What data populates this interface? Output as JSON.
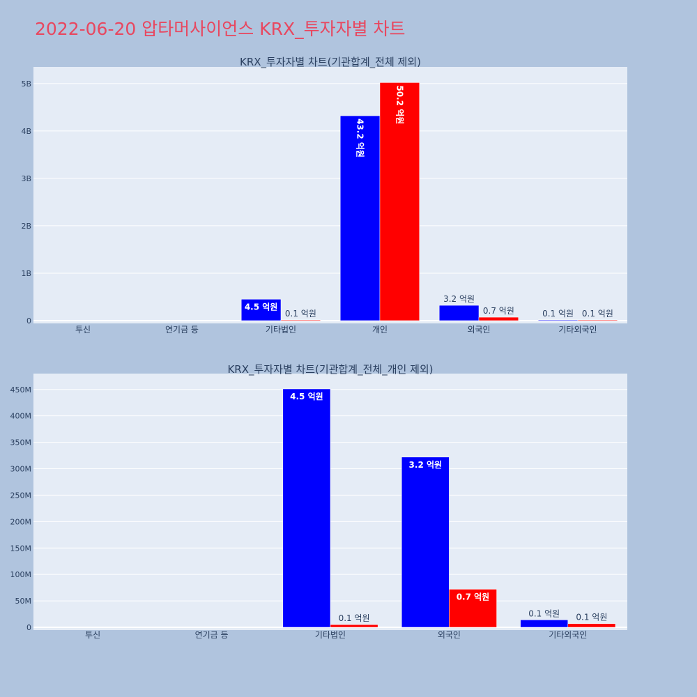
{
  "page": {
    "title": "2022-06-20 압타머사이언스 KRX_투자자별 차트"
  },
  "colors": {
    "series_a": "#0000ff",
    "series_b": "#ff0000",
    "plot_bg": "#e5ecf6",
    "page_bg": "#b0c4de"
  },
  "chart_data": [
    {
      "type": "bar",
      "title": "KRX_투자자별 차트(기관합계_전체 제외)",
      "categories": [
        "투신",
        "연기금 등",
        "기타법인",
        "개인",
        "외국인",
        "기타외국인"
      ],
      "series": [
        {
          "color": "#0000ff",
          "values": [
            0,
            0,
            451000000,
            4320000000,
            322000000,
            14000000
          ],
          "labels": [
            "",
            "",
            "4.5 억원",
            "43.2 억원",
            "3.2 억원",
            "0.1 억원"
          ]
        },
        {
          "color": "#ff0000",
          "values": [
            0,
            0,
            5000000,
            5020000000,
            72000000,
            7000000
          ],
          "labels": [
            "",
            "",
            "0.1 억원",
            "50.2 억원",
            "0.7 억원",
            "0.1 억원"
          ]
        }
      ],
      "ylim": [
        0,
        5350000000
      ],
      "yticks": [
        0,
        1000000000,
        2000000000,
        3000000000,
        4000000000,
        5000000000
      ],
      "ytick_labels": [
        "0",
        "1B",
        "2B",
        "3B",
        "4B",
        "5B"
      ],
      "grid": true
    },
    {
      "type": "bar",
      "title": "KRX_투자자별 차트(기관합계_전체_개인 제외)",
      "categories": [
        "투신",
        "연기금 등",
        "기타법인",
        "외국인",
        "기타외국인"
      ],
      "series": [
        {
          "color": "#0000ff",
          "values": [
            0,
            0,
            451000000,
            322000000,
            14000000
          ],
          "labels": [
            "",
            "",
            "4.5 억원",
            "3.2 억원",
            "0.1 억원"
          ]
        },
        {
          "color": "#ff0000",
          "values": [
            0,
            0,
            5000000,
            72000000,
            7000000
          ],
          "labels": [
            "",
            "",
            "0.1 억원",
            "0.7 억원",
            "0.1 억원"
          ]
        }
      ],
      "ylim": [
        0,
        480000000
      ],
      "yticks": [
        0,
        50000000,
        100000000,
        150000000,
        200000000,
        250000000,
        300000000,
        350000000,
        400000000,
        450000000
      ],
      "ytick_labels": [
        "0",
        "50M",
        "100M",
        "150M",
        "200M",
        "250M",
        "300M",
        "350M",
        "400M",
        "450M"
      ],
      "grid": true
    }
  ]
}
